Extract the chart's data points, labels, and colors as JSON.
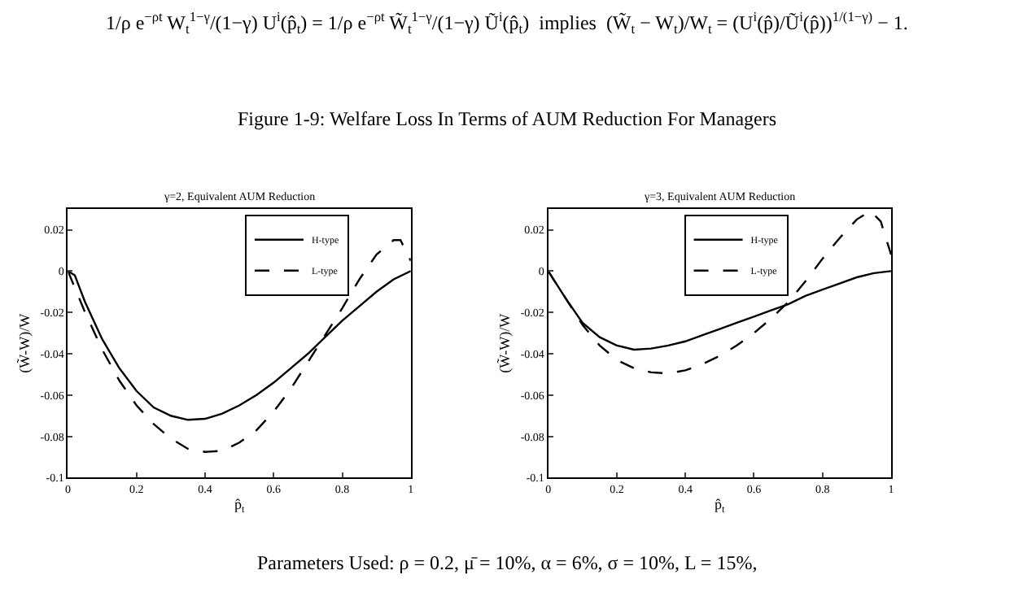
{
  "chart_data": [
    {
      "type": "line",
      "title": "γ=2, Equivalent AUM Reduction",
      "xlabel": "p̂$_{t}$",
      "ylabel": "(W̃-W)/W",
      "xlim": [
        0,
        1
      ],
      "xticks": [
        0,
        0.2,
        0.4,
        0.6,
        0.8,
        1
      ],
      "ylim": [
        -0.1,
        0.03
      ],
      "yticks": [
        -0.1,
        -0.08,
        -0.06,
        -0.04,
        -0.02,
        0,
        0.02
      ],
      "grid": false,
      "legend": "top right",
      "marker": "none",
      "x": [
        0,
        0.02,
        0.05,
        0.1,
        0.15,
        0.2,
        0.25,
        0.3,
        0.35,
        0.4,
        0.45,
        0.5,
        0.55,
        0.6,
        0.65,
        0.7,
        0.75,
        0.8,
        0.85,
        0.9,
        0.95,
        1
      ],
      "series": [
        {
          "name": "H-type",
          "color": "#000000",
          "line_style": "solid",
          "values": [
            0,
            -0.002,
            -0.015,
            -0.033,
            -0.047,
            -0.058,
            -0.066,
            -0.07,
            -0.072,
            -0.0715,
            -0.069,
            -0.065,
            -0.06,
            -0.054,
            -0.047,
            -0.04,
            -0.032,
            -0.024,
            -0.017,
            -0.01,
            -0.004,
            0
          ]
        },
        {
          "name": "L-type",
          "color": "#000000",
          "line_style": "dashed",
          "x": [
            0,
            0.02,
            0.05,
            0.1,
            0.15,
            0.2,
            0.25,
            0.3,
            0.35,
            0.4,
            0.45,
            0.5,
            0.55,
            0.6,
            0.65,
            0.7,
            0.75,
            0.8,
            0.85,
            0.9,
            0.95,
            0.97,
            1
          ],
          "values": [
            0,
            -0.008,
            -0.02,
            -0.038,
            -0.053,
            -0.065,
            -0.074,
            -0.081,
            -0.086,
            -0.0875,
            -0.087,
            -0.083,
            -0.077,
            -0.068,
            -0.057,
            -0.044,
            -0.031,
            -0.018,
            -0.004,
            0.008,
            0.015,
            0.015,
            0.005
          ]
        }
      ],
      "annotations": [
        "1/ρ e$^{−ρt}$ W$_{t}$$^{1−γ}$/(1−γ) U$^{i}$(p̂$_{t}$) = 1/ρ e$^{−ρt}$ W̃$_{t}$$^{1−γ}$/(1−γ) Ũ$^{i}$(p̂$_{t}$)  implies  (W̃$_{t}$ − W$_{t}$)/W$_{t}$ = (U$^{i}$(p̂)/Ũ$^{i}$(p̂))$^{1/(1−γ)}$ − 1.",
        "Figure 1-9: Welfare Loss In Terms of AUM Reduction For Managers",
        "Parameters Used: ρ = 0.2, μ̄ = 10%, α = 6%, σ = 10%, L = 15%,"
      ]
    },
    {
      "type": "line",
      "title": "γ=3, Equivalent AUM Reduction",
      "xlabel": "p̂$_{t}$",
      "ylabel": "(W̃-W)/W",
      "xlim": [
        0,
        1
      ],
      "xticks": [
        0,
        0.2,
        0.4,
        0.6,
        0.8,
        1
      ],
      "ylim": [
        -0.1,
        0.03
      ],
      "yticks": [
        -0.1,
        -0.08,
        -0.06,
        -0.04,
        -0.02,
        0,
        0.02
      ],
      "grid": false,
      "legend": "top right",
      "marker": "none",
      "x": [
        0,
        0.05,
        0.1,
        0.15,
        0.2,
        0.25,
        0.3,
        0.35,
        0.4,
        0.45,
        0.5,
        0.55,
        0.6,
        0.65,
        0.7,
        0.75,
        0.8,
        0.85,
        0.9,
        0.95,
        1
      ],
      "series": [
        {
          "name": "H-type",
          "color": "#000000",
          "line_style": "solid",
          "values": [
            0,
            -0.013,
            -0.025,
            -0.032,
            -0.036,
            -0.038,
            -0.0375,
            -0.036,
            -0.034,
            -0.031,
            -0.028,
            -0.025,
            -0.022,
            -0.019,
            -0.016,
            -0.012,
            -0.009,
            -0.006,
            -0.003,
            -0.001,
            0
          ]
        },
        {
          "name": "L-type",
          "color": "#000000",
          "line_style": "dashed",
          "x": [
            0,
            0.05,
            0.1,
            0.15,
            0.2,
            0.25,
            0.3,
            0.35,
            0.4,
            0.45,
            0.5,
            0.55,
            0.6,
            0.65,
            0.7,
            0.75,
            0.8,
            0.85,
            0.9,
            0.94,
            0.97,
            1
          ],
          "values": [
            0,
            -0.013,
            -0.026,
            -0.036,
            -0.043,
            -0.047,
            -0.049,
            -0.0495,
            -0.048,
            -0.045,
            -0.041,
            -0.036,
            -0.03,
            -0.023,
            -0.015,
            -0.005,
            0.006,
            0.016,
            0.025,
            0.029,
            0.024,
            0.008
          ]
        }
      ]
    }
  ]
}
